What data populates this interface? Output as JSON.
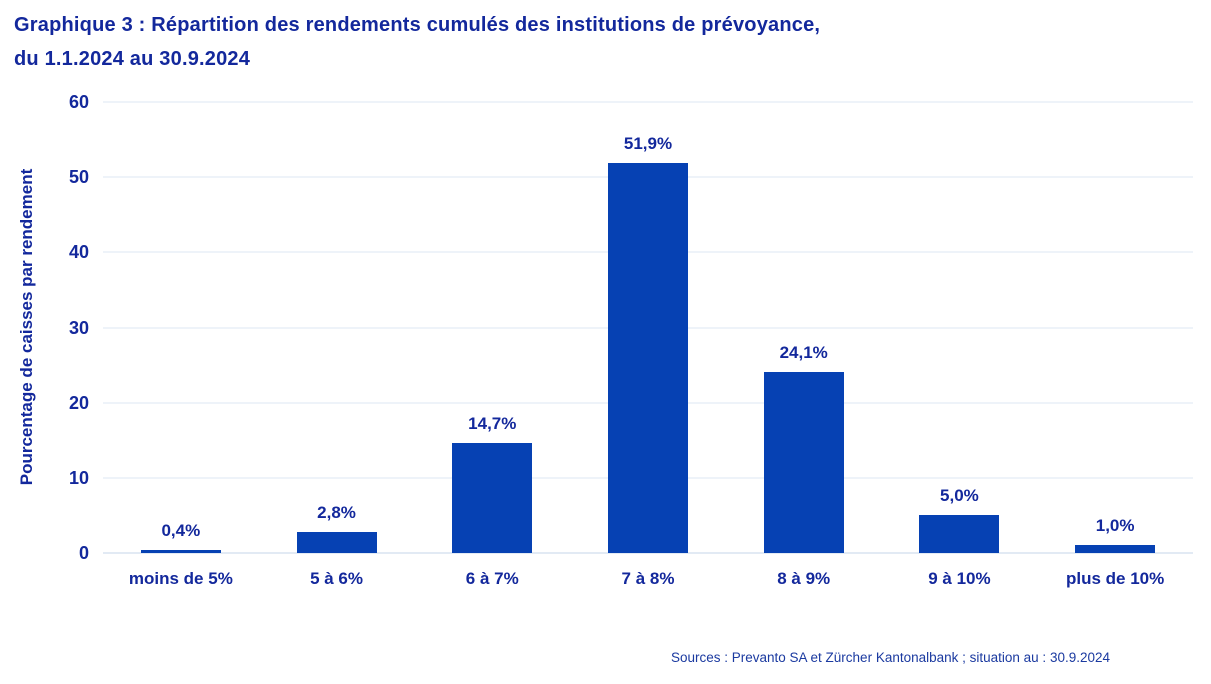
{
  "title": {
    "line1": "Graphique 3 : Répartition des rendements cumulés des institutions de prévoyance,",
    "line2": "du 1.1.2024 au 30.9.2024"
  },
  "source_note": "Sources : Prevanto SA et Zürcher Kantonalbank ; situation au : 30.9.2024",
  "colors": {
    "text_blue": "#13289c",
    "bar_blue": "#0641b3",
    "gridline": "#dde7f3",
    "baseline": "#c6d5ea",
    "source_text": "#1b3aa0"
  },
  "chart_data": {
    "type": "bar",
    "title": "Graphique 3 : Répartition des rendements cumulés des institutions de prévoyance, du 1.1.2024 au 30.9.2024",
    "categories": [
      "moins de 5%",
      "5 à 6%",
      "6 à 7%",
      "7 à 8%",
      "8 à 9%",
      "9 à 10%",
      "plus de 10%"
    ],
    "values": [
      0.4,
      2.8,
      14.7,
      51.9,
      24.1,
      5.0,
      1.0
    ],
    "value_labels": [
      "0,4%",
      "2,8%",
      "14,7%",
      "51,9%",
      "24,1%",
      "5,0%",
      "1,0%"
    ],
    "xlabel": "",
    "ylabel": "Pourcentage de caisses par rendement",
    "ylim": [
      0,
      60
    ],
    "yticks": [
      0,
      10,
      20,
      30,
      40,
      50,
      60
    ],
    "grid": "horizontal",
    "legend_position": "none"
  }
}
